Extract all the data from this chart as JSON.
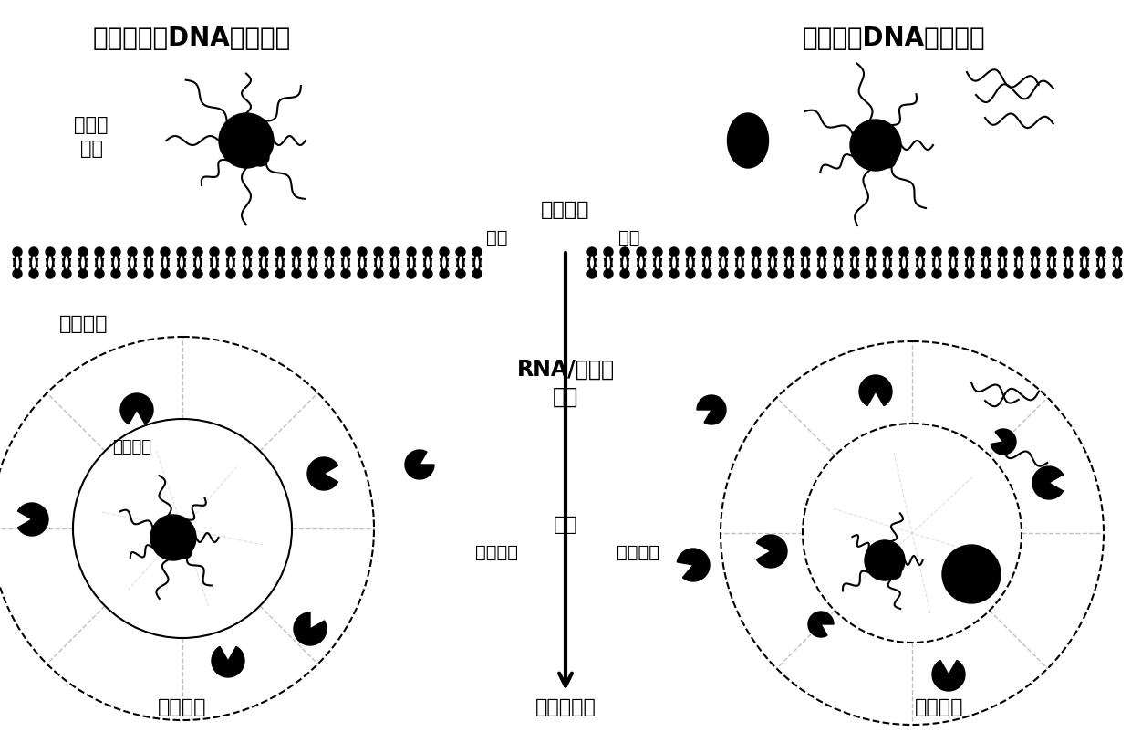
{
  "title_left": "一体化同步DNA纳米器件",
  "title_right": "分离模块DNA纳米器件",
  "label_duomokuai": "多模块\n集成",
  "label_xibao": "细胞内吞",
  "label_tongbu": "同步",
  "label_yibu": "异步",
  "label_jiangujia": "胞浆骨架",
  "label_RNA": "RNA/端粒酶",
  "label_chufa": "触发",
  "label_qudong": "驱动",
  "label_neiyuan": "内源驱动",
  "label_waiyuan": "外源辅助",
  "label_tansuonongsu": "探针浓缩",
  "label_duobiaocheng": "多靶标成像",
  "label_kuaisu": "快速反应",
  "label_xianzhi": "限制反应",
  "bg_color": "#ffffff",
  "text_color": "#000000",
  "membrane_color": "#000000",
  "arrow_color": "#000000"
}
